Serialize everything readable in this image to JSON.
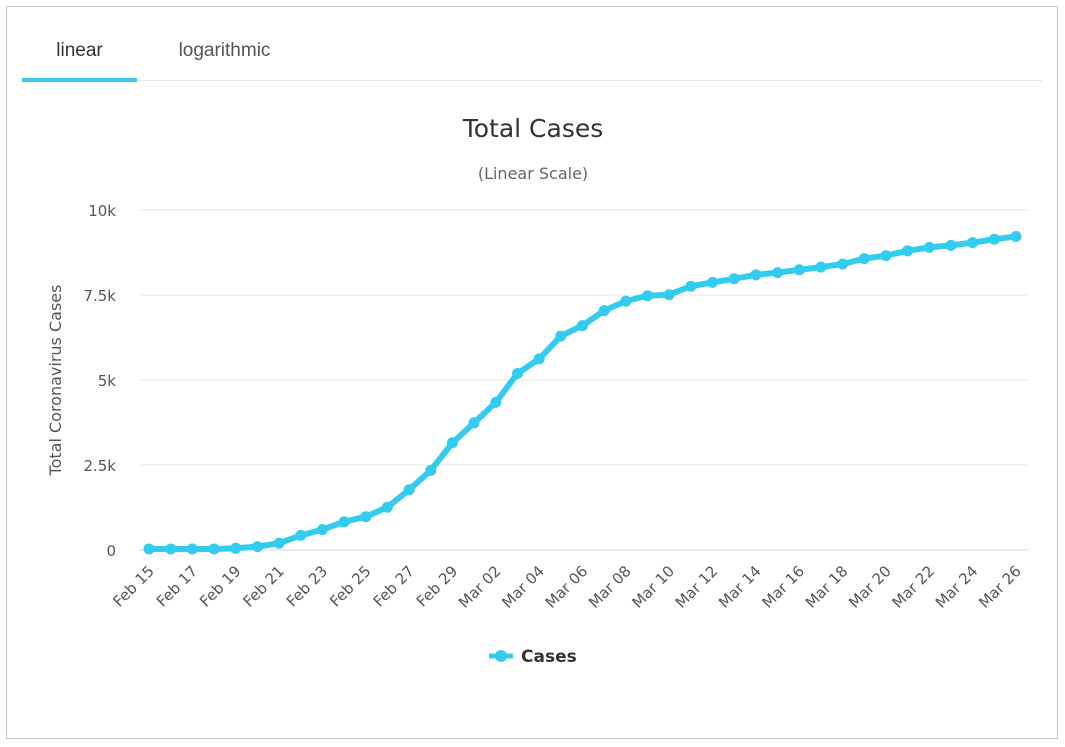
{
  "tabs": [
    {
      "label": "linear",
      "active": true
    },
    {
      "label": "logarithmic",
      "active": false
    }
  ],
  "colors": {
    "accent": "#3ec6ee",
    "series": "#33ccee",
    "grid": "#e6e6e6",
    "text": "#333333"
  },
  "chart_data": {
    "type": "line",
    "title": "Total Cases",
    "subtitle": "(Linear Scale)",
    "ylabel": "Total Coronavirus Cases",
    "xlabel": "",
    "ylim": [
      0,
      10000
    ],
    "yticks": [
      "0",
      "2.5k",
      "5k",
      "7.5k",
      "10k"
    ],
    "ytick_values": [
      0,
      2500,
      5000,
      7500,
      10000
    ],
    "grid": true,
    "legend_position": "bottom-center",
    "x": [
      "Feb 15",
      "Feb 16",
      "Feb 17",
      "Feb 18",
      "Feb 19",
      "Feb 20",
      "Feb 21",
      "Feb 22",
      "Feb 23",
      "Feb 24",
      "Feb 25",
      "Feb 26",
      "Feb 27",
      "Feb 28",
      "Feb 29",
      "Mar 01",
      "Mar 02",
      "Mar 03",
      "Mar 04",
      "Mar 05",
      "Mar 06",
      "Mar 07",
      "Mar 08",
      "Mar 09",
      "Mar 10",
      "Mar 11",
      "Mar 12",
      "Mar 13",
      "Mar 14",
      "Mar 15",
      "Mar 16",
      "Mar 17",
      "Mar 18",
      "Mar 19",
      "Mar 20",
      "Mar 21",
      "Mar 22",
      "Mar 23",
      "Mar 24",
      "Mar 25",
      "Mar 26"
    ],
    "xticks": [
      "Feb 15",
      "Feb 17",
      "Feb 19",
      "Feb 21",
      "Feb 23",
      "Feb 25",
      "Feb 27",
      "Feb 29",
      "Mar 02",
      "Mar 04",
      "Mar 06",
      "Mar 08",
      "Mar 10",
      "Mar 12",
      "Mar 14",
      "Mar 16",
      "Mar 18",
      "Mar 20",
      "Mar 22",
      "Mar 24",
      "Mar 26"
    ],
    "series": [
      {
        "name": "Cases",
        "values": [
          30,
          30,
          30,
          30,
          50,
          100,
          200,
          430,
          600,
          830,
          980,
          1260,
          1770,
          2340,
          3150,
          3740,
          4340,
          5190,
          5620,
          6290,
          6600,
          7040,
          7320,
          7480,
          7510,
          7760,
          7870,
          7980,
          8090,
          8160,
          8240,
          8320,
          8410,
          8570,
          8660,
          8800,
          8900,
          8960,
          9040,
          9140,
          9220
        ]
      }
    ]
  }
}
